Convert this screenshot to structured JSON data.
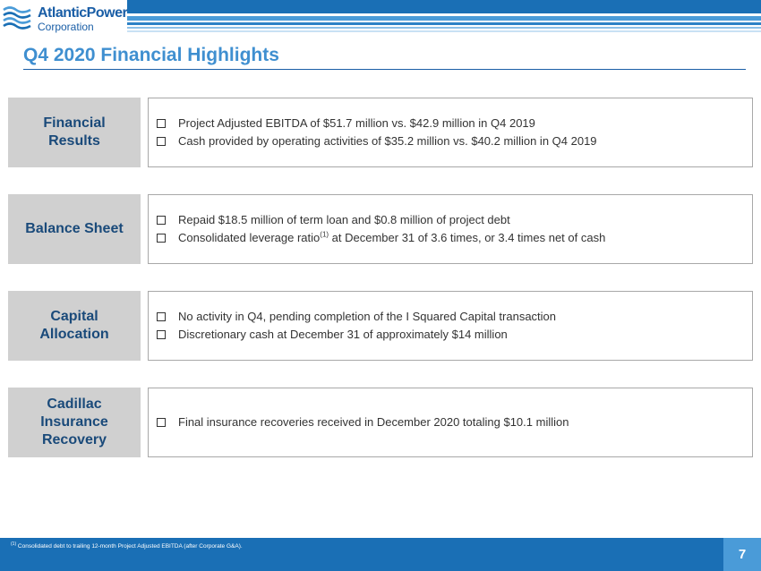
{
  "brand": {
    "logo_line1": "AtlanticPower",
    "logo_line2": "Corporation"
  },
  "slide": {
    "title": "Q4 2020 Financial Highlights",
    "page_number": "7"
  },
  "rows": [
    {
      "label": "Financial\nResults",
      "bullets": [
        "Project Adjusted EBITDA of $51.7 million vs. $42.9 million in Q4 2019",
        "Cash provided by operating activities of $35.2 million vs. $40.2 million in Q4 2019"
      ]
    },
    {
      "label": "Balance Sheet",
      "bullet1": "Repaid $18.5 million of term loan and $0.8 million of project debt",
      "bullet2_before": "Consolidated leverage ratio",
      "bullet2_sup": "(1)",
      "bullet2_after": " at December 31 of 3.6 times, or 3.4 times net of cash"
    },
    {
      "label": "Capital\nAllocation",
      "bullets": [
        "No activity in Q4, pending completion of the I Squared Capital transaction",
        "Discretionary cash at December 31 of approximately $14 million"
      ]
    },
    {
      "label": "Cadillac\nInsurance\nRecovery",
      "bullets": [
        "Final insurance recoveries received in December 2020 totaling $10.1 million"
      ]
    }
  ],
  "footer": {
    "footnote_marker": "(1)",
    "footnote_text": " Consolidated debt to trailing 12-month Project Adjusted EBITDA (after Corporate G&A)."
  },
  "colors": {
    "brand_blue": "#1a6fb5",
    "title_blue": "#3f8fd0",
    "label_gray": "#d0d0d0",
    "label_text": "#1a4a7a"
  }
}
